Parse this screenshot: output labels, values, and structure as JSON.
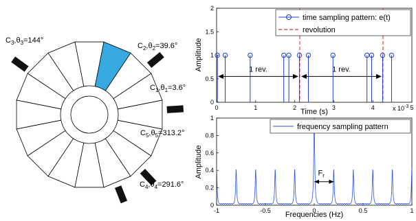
{
  "colors": {
    "stem": "#1f3fd9",
    "spectrum": "#2a52e8",
    "revolution": "#e0302e",
    "selected_slot": "#35a9e0",
    "sensor": "#111111",
    "line": "#000000"
  },
  "wheel": {
    "slot_count": 16,
    "selected_slot_index": 15,
    "sensors": [
      {
        "id": "C3",
        "base": "C",
        "sub": "3",
        "theta_sub": "3",
        "value": "=144°",
        "angle_deg": 144
      },
      {
        "id": "C2",
        "base": "C",
        "sub": "2",
        "theta_sub": "2",
        "value": "=39.6°",
        "angle_deg": 39.6
      },
      {
        "id": "C1",
        "base": "C",
        "sub": "1",
        "theta_sub": "1",
        "value": "=3.6°",
        "angle_deg": 3.6
      },
      {
        "id": "C5",
        "base": "C",
        "sub": "5",
        "theta_sub": "5",
        "value": "=313.2°",
        "angle_deg": 313.2
      },
      {
        "id": "C4",
        "base": "C",
        "sub": "4",
        "theta_sub": "4",
        "value": "=291.6°",
        "angle_deg": 291.6
      }
    ]
  },
  "chart_data": [
    {
      "type": "stem",
      "xlabel": "Time (s)",
      "ylabel": "Amplitude",
      "xlim": [
        0,
        0.005
      ],
      "ylim": [
        0,
        2
      ],
      "xticks": [
        "0",
        "1",
        "2",
        "3",
        "4",
        "5"
      ],
      "yticks": [
        "0",
        "0.5",
        "1",
        "1.5",
        "2"
      ],
      "x_exponent_base": "x 10",
      "x_exponent_power": "-3",
      "grid": false,
      "legend_position": "top-right",
      "series": [
        {
          "name": "time sampling pattern: e(t)",
          "style": "stem",
          "x": [
            2e-05,
            0.00022,
            0.00086,
            0.00172,
            0.00185,
            0.00212,
            0.00235,
            0.00298,
            0.00385,
            0.00397,
            0.00425,
            0.00448
          ],
          "y": [
            1,
            1,
            1,
            1,
            1,
            1,
            1,
            1,
            1,
            1,
            1,
            1
          ]
        },
        {
          "name": "revolution",
          "style": "dashed-vertical",
          "x": [
            0.00213,
            0.00426
          ]
        }
      ],
      "annotations": [
        {
          "text": "1 rev.",
          "from": 0.0,
          "to": 0.00213,
          "y": 0.55
        },
        {
          "text": "1 rev.",
          "from": 0.00213,
          "to": 0.00426,
          "y": 0.55
        }
      ]
    },
    {
      "type": "line",
      "xlabel": "Frequencies (Hz)",
      "ylabel": "Amplitude",
      "xlim": [
        -1,
        1
      ],
      "ylim": [
        0,
        1
      ],
      "xticks": [
        "-1",
        "-0.5",
        "0",
        "0.5",
        "1"
      ],
      "yticks": [
        "0",
        "0.2",
        "0.4",
        "0.6",
        "0.8",
        "1"
      ],
      "grid": false,
      "legend_position": "top-right",
      "series": [
        {
          "name": "frequency sampling pattern",
          "peaks_x": [
            -1,
            -0.8,
            -0.6,
            -0.4,
            -0.2,
            0,
            0.2,
            0.4,
            0.6,
            0.8,
            1
          ],
          "peaks_y": [
            0.42,
            0.41,
            0.41,
            0.41,
            0.41,
            1.0,
            0.41,
            0.41,
            0.41,
            0.41,
            0.42
          ],
          "floor": 0.02
        }
      ],
      "annotations": [
        {
          "text_base": "F",
          "text_sub": "r",
          "from": 0.0,
          "to": 0.2,
          "y": 0.27
        }
      ]
    }
  ]
}
